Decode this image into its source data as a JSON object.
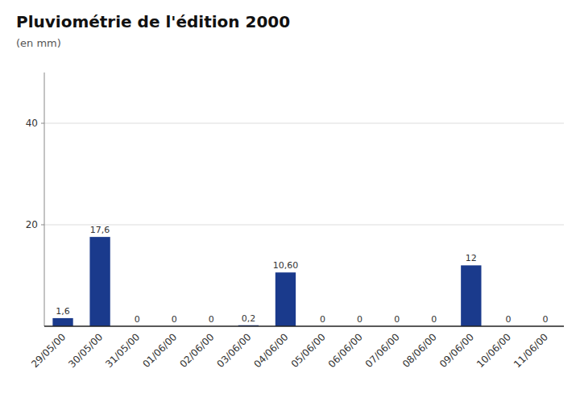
{
  "chart_data": {
    "type": "bar",
    "title": "Pluviométrie de l'édition 2000",
    "subtitle": "(en mm)",
    "categories": [
      "29/05/00",
      "30/05/00",
      "31/05/00",
      "01/06/00",
      "02/06/00",
      "03/06/00",
      "04/06/00",
      "05/06/00",
      "06/06/00",
      "07/06/00",
      "08/06/00",
      "09/06/00",
      "10/06/00",
      "11/06/00"
    ],
    "values": [
      1.6,
      17.6,
      0,
      0,
      0,
      0.2,
      10.6,
      0,
      0,
      0,
      0,
      12,
      0,
      0
    ],
    "value_labels": [
      "1,6",
      "17,6",
      "0",
      "0",
      "0",
      "0,2",
      "10,60",
      "0",
      "0",
      "0",
      "0",
      "12",
      "0",
      "0"
    ],
    "color": "#1a3a8c",
    "ylim": [
      0,
      50
    ],
    "yticks": [
      20,
      40
    ],
    "grid": true,
    "data_labels": true
  }
}
